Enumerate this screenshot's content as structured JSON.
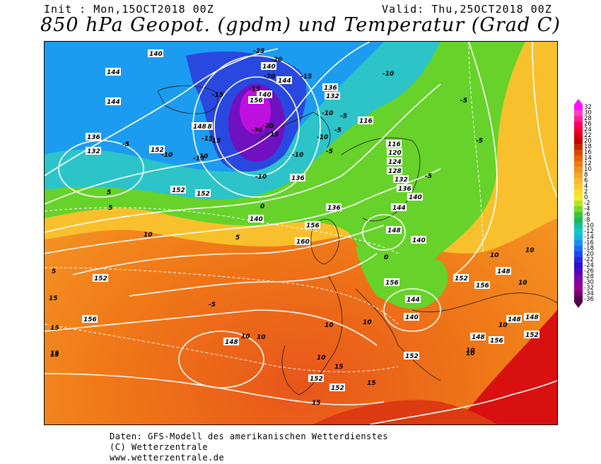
{
  "header": {
    "init": "Init : Mon,15OCT2018 00Z",
    "valid": "Valid: Thu,25OCT2018 00Z",
    "title": "850 hPa Geopot. (gpdm) und Temperatur (Grad C)"
  },
  "credits": {
    "line1": "Daten: GFS-Modell des amerikanischen Wetterdienstes",
    "line2": "(C) Wetterzentrale",
    "line3": "www.wetterzentrale.de"
  },
  "legend": {
    "labels": [
      "32",
      "30",
      "28",
      "26",
      "24",
      "22",
      "20",
      "18",
      "16",
      "14",
      "12",
      "10",
      "8",
      "6",
      "4",
      "2",
      "0",
      "-2",
      "-4",
      "-6",
      "-8",
      "-10",
      "-12",
      "-14",
      "-16",
      "-18",
      "-20",
      "-22",
      "-24",
      "-26",
      "-28",
      "-30",
      "-32",
      "-34",
      "-36"
    ],
    "colors": [
      "#ff10ff",
      "#ff40c0",
      "#ff2090",
      "#ff0060",
      "#ee0030",
      "#d80010",
      "#c40000",
      "#c82800",
      "#d84800",
      "#e86000",
      "#f07a10",
      "#f4901c",
      "#f7a428",
      "#f8b830",
      "#fac830",
      "#fcdc30",
      "#f0ec28",
      "#b8e428",
      "#78d828",
      "#38c830",
      "#18b860",
      "#10c0a0",
      "#10c8c8",
      "#14b4e4",
      "#1890f0",
      "#1c6cf0",
      "#2048e8",
      "#2828d8",
      "#3010c8",
      "#5008c0",
      "#7008b0",
      "#8800a0",
      "#980090",
      "#760070",
      "#50004c"
    ]
  },
  "map_labels": {
    "geopotential": [
      "140",
      "144",
      "144",
      "148",
      "136",
      "132",
      "140",
      "144",
      "136",
      "132",
      "140",
      "156",
      "152",
      "136",
      "116",
      "116",
      "120",
      "124",
      "128",
      "132",
      "136",
      "140",
      "144",
      "148",
      "140",
      "152",
      "156",
      "148",
      "152",
      "160",
      "156",
      "152",
      "156",
      "148",
      "152",
      "140",
      "144",
      "148",
      "152",
      "156",
      "148",
      "152",
      "148",
      "152",
      "152",
      "148",
      "152",
      "156",
      "136",
      "140"
    ],
    "temperature": [
      "-25",
      "-20",
      "-20",
      "-15",
      "-15",
      "-10",
      "-15",
      "-10",
      "-5",
      "-15",
      "-5",
      "-10",
      "-5",
      "-15",
      "-10",
      "-5",
      "-10",
      "-5",
      "-5",
      "-10",
      "-15",
      "-20",
      "-30",
      "-13",
      "-10",
      "-5",
      "0",
      "5",
      "5",
      "10",
      "5",
      "10",
      "15",
      "10",
      "10",
      "5",
      "0",
      "-5",
      "10",
      "10",
      "10",
      "15",
      "15",
      "10",
      "10",
      "10",
      "15",
      "15",
      "15",
      "10",
      "10",
      "20",
      "15",
      "15"
    ]
  }
}
